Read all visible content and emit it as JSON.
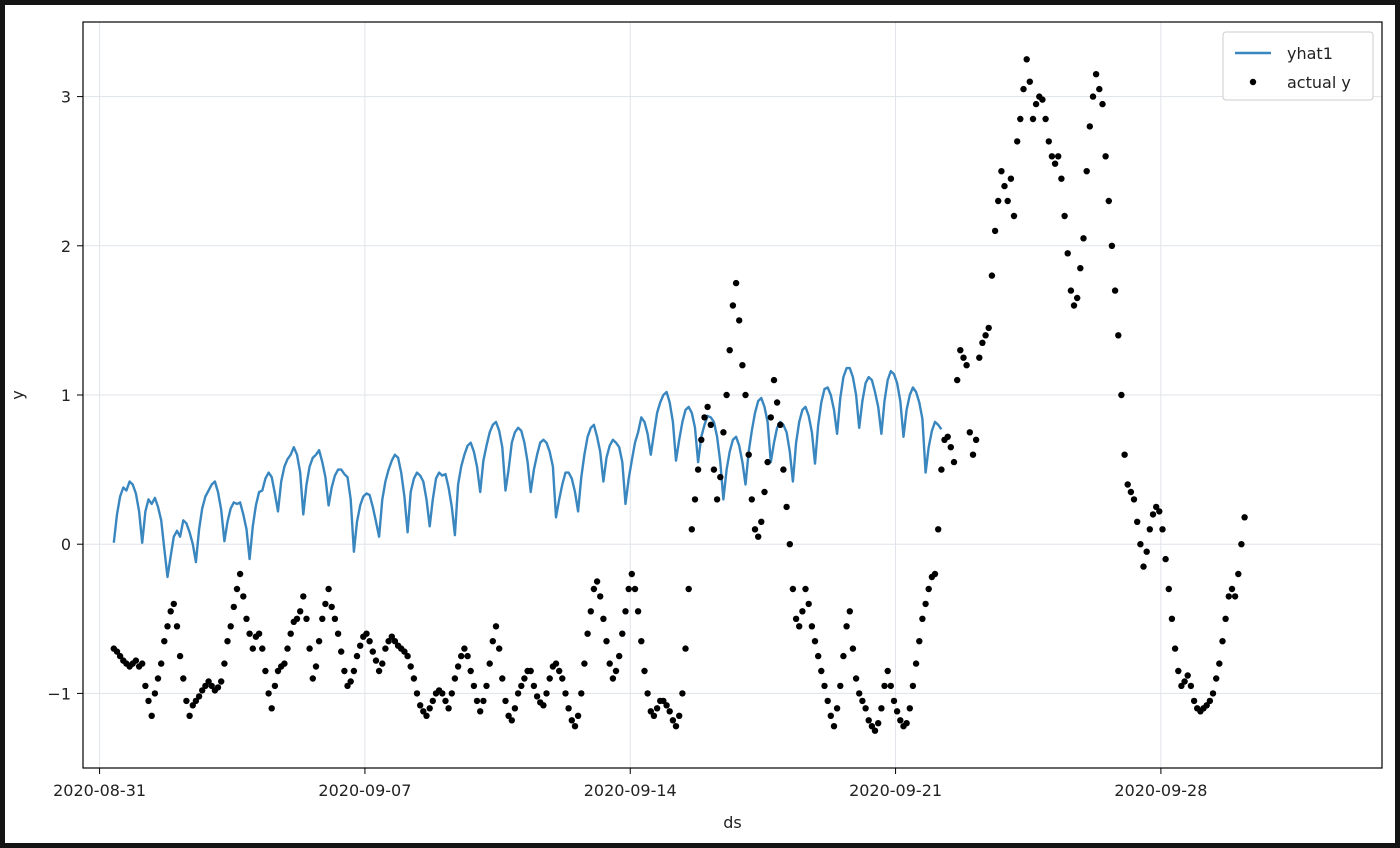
{
  "chart_data": {
    "type": "line",
    "xlabel": "ds",
    "ylabel": "y",
    "x_range": [
      "2020-08-30T13:30",
      "2020-10-03T20:00"
    ],
    "ylim": [
      -1.5,
      3.5
    ],
    "x_ticks": [
      "2020-08-31",
      "2020-09-07",
      "2020-09-14",
      "2020-09-21",
      "2020-09-28"
    ],
    "y_ticks": [
      -1,
      0,
      1,
      2,
      3
    ],
    "grid": true,
    "legend_position": "top-right",
    "series": [
      {
        "name": "yhat1",
        "kind": "line",
        "color": "#3a87c0",
        "start": "2020-08-31T09:00",
        "step_hours": 2,
        "values": [
          0.01,
          0.2,
          0.32,
          0.38,
          0.36,
          0.42,
          0.4,
          0.34,
          0.22,
          0.01,
          0.22,
          0.3,
          0.27,
          0.31,
          0.25,
          0.16,
          -0.03,
          -0.22,
          -0.08,
          0.05,
          0.09,
          0.05,
          0.16,
          0.14,
          0.08,
          0.0,
          -0.12,
          0.1,
          0.24,
          0.32,
          0.36,
          0.4,
          0.42,
          0.35,
          0.23,
          0.02,
          0.15,
          0.24,
          0.28,
          0.27,
          0.28,
          0.2,
          0.1,
          -0.1,
          0.12,
          0.26,
          0.35,
          0.36,
          0.44,
          0.48,
          0.45,
          0.34,
          0.22,
          0.42,
          0.52,
          0.57,
          0.6,
          0.65,
          0.6,
          0.48,
          0.2,
          0.4,
          0.52,
          0.58,
          0.6,
          0.63,
          0.55,
          0.45,
          0.26,
          0.38,
          0.46,
          0.5,
          0.5,
          0.47,
          0.45,
          0.3,
          -0.05,
          0.15,
          0.26,
          0.32,
          0.34,
          0.33,
          0.25,
          0.15,
          0.05,
          0.3,
          0.42,
          0.5,
          0.56,
          0.6,
          0.58,
          0.48,
          0.32,
          0.08,
          0.35,
          0.44,
          0.48,
          0.46,
          0.42,
          0.3,
          0.12,
          0.3,
          0.44,
          0.48,
          0.46,
          0.47,
          0.38,
          0.25,
          0.06,
          0.4,
          0.52,
          0.6,
          0.66,
          0.68,
          0.62,
          0.52,
          0.35,
          0.56,
          0.66,
          0.75,
          0.8,
          0.82,
          0.76,
          0.65,
          0.36,
          0.5,
          0.68,
          0.75,
          0.78,
          0.76,
          0.68,
          0.55,
          0.35,
          0.5,
          0.6,
          0.68,
          0.7,
          0.68,
          0.62,
          0.52,
          0.18,
          0.3,
          0.4,
          0.48,
          0.48,
          0.44,
          0.35,
          0.22,
          0.45,
          0.6,
          0.72,
          0.78,
          0.8,
          0.72,
          0.62,
          0.42,
          0.58,
          0.66,
          0.7,
          0.68,
          0.65,
          0.55,
          0.27,
          0.44,
          0.56,
          0.68,
          0.75,
          0.85,
          0.82,
          0.74,
          0.6,
          0.74,
          0.88,
          0.95,
          1.0,
          1.02,
          0.95,
          0.82,
          0.56,
          0.7,
          0.82,
          0.9,
          0.92,
          0.88,
          0.78,
          0.55,
          0.72,
          0.8,
          0.86,
          0.85,
          0.82,
          0.72,
          0.55,
          0.3,
          0.5,
          0.62,
          0.7,
          0.72,
          0.66,
          0.55,
          0.4,
          0.62,
          0.76,
          0.88,
          0.96,
          0.98,
          0.92,
          0.82,
          0.55,
          0.68,
          0.78,
          0.82,
          0.8,
          0.75,
          0.62,
          0.42,
          0.68,
          0.82,
          0.9,
          0.92,
          0.86,
          0.75,
          0.54,
          0.8,
          0.95,
          1.04,
          1.05,
          1.0,
          0.9,
          0.74,
          0.98,
          1.12,
          1.18,
          1.18,
          1.12,
          1.0,
          0.78,
          0.96,
          1.08,
          1.12,
          1.1,
          1.02,
          0.92,
          0.74,
          0.96,
          1.1,
          1.16,
          1.14,
          1.08,
          0.96,
          0.72,
          0.9,
          1.0,
          1.05,
          1.02,
          0.95,
          0.84,
          0.48,
          0.65,
          0.76,
          0.82,
          0.8,
          0.77
        ]
      },
      {
        "name": "actual y",
        "kind": "scatter",
        "color": "#000000",
        "start": "2020-08-31T09:00",
        "step_hours": 2,
        "values": [
          -0.7,
          -0.72,
          -0.75,
          -0.78,
          -0.8,
          -0.82,
          -0.8,
          -0.78,
          -0.82,
          -0.8,
          -0.95,
          -1.05,
          -1.15,
          -1.0,
          -0.9,
          -0.8,
          -0.65,
          -0.55,
          -0.45,
          -0.4,
          -0.55,
          -0.75,
          -0.9,
          -1.05,
          -1.15,
          -1.08,
          -1.05,
          -1.02,
          -0.98,
          -0.95,
          -0.92,
          -0.95,
          -0.98,
          -0.96,
          -0.92,
          -0.8,
          -0.65,
          -0.55,
          -0.42,
          -0.3,
          -0.2,
          -0.35,
          -0.5,
          -0.6,
          -0.7,
          -0.62,
          -0.6,
          -0.7,
          -0.85,
          -1.0,
          -1.1,
          -0.95,
          -0.85,
          -0.82,
          -0.8,
          -0.7,
          -0.6,
          -0.52,
          -0.5,
          -0.45,
          -0.35,
          -0.5,
          -0.7,
          -0.9,
          -0.82,
          -0.65,
          -0.5,
          -0.4,
          -0.3,
          -0.42,
          -0.5,
          -0.6,
          -0.72,
          -0.85,
          -0.95,
          -0.92,
          -0.85,
          -0.75,
          -0.68,
          -0.62,
          -0.6,
          -0.65,
          -0.72,
          -0.78,
          -0.85,
          -0.8,
          -0.7,
          -0.65,
          -0.62,
          -0.65,
          -0.68,
          -0.7,
          -0.72,
          -0.75,
          -0.82,
          -0.9,
          -1.0,
          -1.08,
          -1.12,
          -1.15,
          -1.1,
          -1.05,
          -1.0,
          -0.98,
          -1.0,
          -1.05,
          -1.1,
          -1.0,
          -0.9,
          -0.82,
          -0.75,
          -0.7,
          -0.75,
          -0.85,
          -0.95,
          -1.05,
          -1.12,
          -1.05,
          -0.95,
          -0.8,
          -0.65,
          -0.55,
          -0.7,
          -0.9,
          -1.05,
          -1.15,
          -1.18,
          -1.1,
          -1.0,
          -0.95,
          -0.9,
          -0.85,
          -0.85,
          -0.95,
          -1.02,
          -1.06,
          -1.08,
          -1.0,
          -0.9,
          -0.82,
          -0.8,
          -0.85,
          -0.9,
          -1.0,
          -1.1,
          -1.18,
          -1.22,
          -1.15,
          -1.0,
          -0.8,
          -0.6,
          -0.45,
          -0.3,
          -0.25,
          -0.35,
          -0.5,
          -0.65,
          -0.8,
          -0.9,
          -0.85,
          -0.75,
          -0.6,
          -0.45,
          -0.3,
          -0.2,
          -0.3,
          -0.45,
          -0.65,
          -0.85,
          -1.0,
          -1.12,
          -1.15,
          -1.1,
          -1.05,
          -1.05,
          -1.08,
          -1.12,
          -1.18,
          -1.22,
          -1.15,
          -1.0,
          -0.7,
          -0.3,
          0.1,
          0.3,
          0.5,
          0.7,
          0.85,
          0.92,
          0.8,
          0.5,
          0.3,
          0.45,
          0.75,
          1.0,
          1.3,
          1.6,
          1.75,
          1.5,
          1.2,
          1.0,
          0.6,
          0.3,
          0.1,
          0.05,
          0.15,
          0.35,
          0.55,
          0.85,
          1.1,
          0.95,
          0.8,
          0.5,
          0.25,
          0.0,
          -0.3,
          -0.5,
          -0.55,
          -0.45,
          -0.3,
          -0.4,
          -0.55,
          -0.65,
          -0.75,
          -0.85,
          -0.95,
          -1.05,
          -1.15,
          -1.22,
          -1.1,
          -0.95,
          -0.75,
          -0.55,
          -0.45,
          -0.7,
          -0.9,
          -1.0,
          -1.05,
          -1.1,
          -1.18,
          -1.22,
          -1.25,
          -1.2,
          -1.1,
          -0.95,
          -0.85,
          -0.95,
          -1.05,
          -1.12,
          -1.18,
          -1.22,
          -1.2,
          -1.1,
          -0.95,
          -0.8,
          -0.65,
          -0.5,
          -0.4,
          -0.3,
          -0.22,
          -0.2,
          0.1,
          0.5,
          0.7,
          0.72,
          0.65,
          0.55,
          1.1,
          1.3,
          1.25,
          1.2,
          0.75,
          0.6,
          0.7,
          1.25,
          1.35,
          1.4,
          1.45,
          1.8,
          2.1,
          2.3,
          2.5,
          2.4,
          2.3,
          2.45,
          2.2,
          2.7,
          2.85,
          3.05,
          3.25,
          3.1,
          2.85,
          2.95,
          3.0,
          2.98,
          2.85,
          2.7,
          2.6,
          2.55,
          2.6,
          2.45,
          2.2,
          1.95,
          1.7,
          1.6,
          1.65,
          1.85,
          2.05,
          2.5,
          2.8,
          3.0,
          3.15,
          3.05,
          2.95,
          2.6,
          2.3,
          2.0,
          1.7,
          1.4,
          1.0,
          0.6,
          0.4,
          0.35,
          0.3,
          0.15,
          0.0,
          -0.15,
          -0.05,
          0.1,
          0.2,
          0.25,
          0.22,
          0.1,
          -0.1,
          -0.3,
          -0.5,
          -0.7,
          -0.85,
          -0.95,
          -0.92,
          -0.88,
          -0.95,
          -1.05,
          -1.1,
          -1.12,
          -1.1,
          -1.08,
          -1.05,
          -1.0,
          -0.9,
          -0.8,
          -0.65,
          -0.5,
          -0.35,
          -0.3,
          -0.35,
          -0.2,
          0.0,
          0.18
        ]
      }
    ]
  }
}
